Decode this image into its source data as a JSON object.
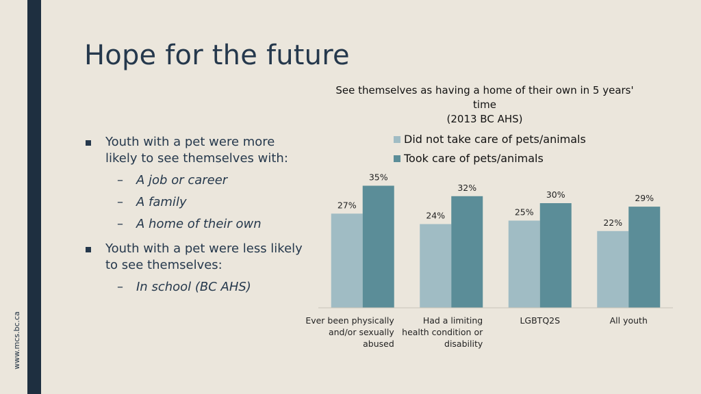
{
  "slide": {
    "title": "Hope for the future",
    "side_url": "www.mcs.bc.ca",
    "bullets": [
      {
        "text": "Youth with a pet were more likely to see themselves with:",
        "subs": [
          "A job or career",
          "A family",
          "A home of their own"
        ]
      },
      {
        "text": "Youth with a pet were less likely to see themselves:",
        "subs": [
          "In school (BC AHS)"
        ]
      }
    ]
  },
  "chart_data": {
    "type": "bar",
    "title_lines": [
      "See themselves as having a home of their own in 5 years'",
      "time",
      "(2013 BC AHS)"
    ],
    "categories": [
      [
        "Ever been physically",
        "and/or sexually",
        "abused"
      ],
      [
        "Had a limiting",
        "health condition or",
        "disability"
      ],
      [
        "LGBTQ2S"
      ],
      [
        "All youth"
      ]
    ],
    "series": [
      {
        "name": "Did not take care of pets/animals",
        "values": [
          27,
          24,
          25,
          22
        ],
        "labels": [
          "27%",
          "24%",
          "25%",
          "22%"
        ],
        "color": "#a0bcc4"
      },
      {
        "name": "Took care of pets/animals",
        "values": [
          35,
          32,
          30,
          29
        ],
        "labels": [
          "35%",
          "32%",
          "30%",
          "29%"
        ],
        "color": "#5b8d98"
      }
    ],
    "ylim": [
      0,
      40
    ],
    "legend_position": "top",
    "grid": false
  }
}
